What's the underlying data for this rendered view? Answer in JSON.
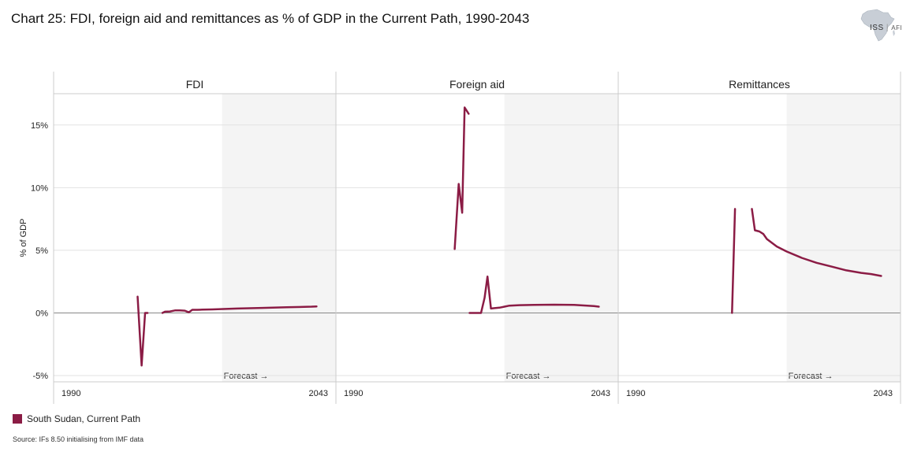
{
  "title": "Chart 25: FDI, foreign aid and remittances as % of GDP in the Current Path, 1990-2043",
  "logo": {
    "main": "ISS",
    "sub": "AFI"
  },
  "legend": {
    "label": "South Sudan, Current Path",
    "color": "#8b1c45"
  },
  "source": "Source: IFs 8.50 initialising from IMF data",
  "colors": {
    "series": "#8b1c45",
    "forecast_band": "#f4f4f4",
    "grid": "#e2e2e2",
    "zero": "#888888",
    "border": "#cccccc"
  },
  "chart_data": {
    "type": "line",
    "ylabel": "% of GDP",
    "ylim": [
      -5.5,
      17.5
    ],
    "yticks": [
      -5,
      0,
      5,
      10,
      15
    ],
    "ytick_labels": [
      "-5%",
      "0%",
      "5%",
      "10%",
      "15%"
    ],
    "xlim": [
      1990,
      2043
    ],
    "xtick_labels": [
      "1990",
      "2043"
    ],
    "forecast_start": 2022,
    "forecast_label": "Forecast →",
    "panels": [
      {
        "title": "FDI",
        "segments": [
          [
            [
              2005,
              1.3
            ],
            [
              2005.8,
              -4.2
            ],
            [
              2006.5,
              0.0
            ],
            [
              2007,
              0.0
            ]
          ],
          [
            [
              2010,
              0.0
            ],
            [
              2010.5,
              0.1
            ],
            [
              2011.5,
              0.12
            ],
            [
              2012.5,
              0.2
            ],
            [
              2013.5,
              0.2
            ],
            [
              2014.5,
              0.18
            ],
            [
              2015.3,
              0.05
            ],
            [
              2016,
              0.25
            ],
            [
              2017,
              0.25
            ],
            [
              2018,
              0.26
            ],
            [
              2020,
              0.28
            ],
            [
              2025,
              0.35
            ],
            [
              2030,
              0.4
            ],
            [
              2035,
              0.45
            ],
            [
              2040,
              0.5
            ],
            [
              2041,
              0.52
            ]
          ]
        ]
      },
      {
        "title": "Foreign aid",
        "segments": [
          [
            [
              2012,
              5.1
            ],
            [
              2012.8,
              10.3
            ],
            [
              2013.5,
              8.0
            ],
            [
              2014,
              16.4
            ],
            [
              2014.8,
              15.9
            ]
          ],
          [
            [
              2015,
              0.0
            ],
            [
              2016,
              0.0
            ],
            [
              2017,
              0.0
            ],
            [
              2017.3,
              0.0
            ],
            [
              2018,
              1.2
            ],
            [
              2018.6,
              2.9
            ],
            [
              2019.3,
              0.35
            ],
            [
              2020,
              0.38
            ],
            [
              2021,
              0.42
            ],
            [
              2022,
              0.5
            ],
            [
              2023,
              0.58
            ],
            [
              2025,
              0.62
            ],
            [
              2028,
              0.64
            ],
            [
              2032,
              0.66
            ],
            [
              2036,
              0.64
            ],
            [
              2040,
              0.55
            ],
            [
              2041,
              0.5
            ]
          ]
        ]
      },
      {
        "title": "Remittances",
        "segments": [
          [
            [
              2011,
              0.0
            ],
            [
              2011.6,
              8.3
            ]
          ],
          [
            [
              2015,
              8.3
            ],
            [
              2015.6,
              6.6
            ],
            [
              2016.5,
              6.5
            ],
            [
              2017.3,
              6.3
            ],
            [
              2018,
              5.9
            ],
            [
              2020,
              5.3
            ],
            [
              2022,
              4.9
            ],
            [
              2025,
              4.4
            ],
            [
              2028,
              4.0
            ],
            [
              2031,
              3.7
            ],
            [
              2034,
              3.4
            ],
            [
              2037,
              3.2
            ],
            [
              2039,
              3.1
            ],
            [
              2041,
              2.95
            ]
          ]
        ]
      }
    ]
  }
}
